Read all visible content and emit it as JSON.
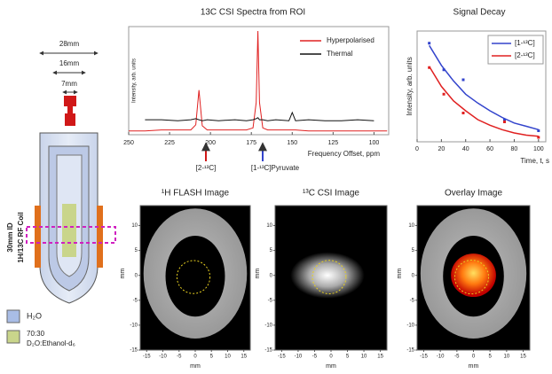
{
  "diagram": {
    "dims": [
      "28mm",
      "16mm",
      "7mm"
    ],
    "side_labels": [
      "30mm ID",
      "1H/13C RF Coil"
    ],
    "legend": [
      "H₂O",
      "70:30",
      "D₂O:Ethanol-d₆"
    ]
  },
  "annotations": [
    "[2-¹³C]",
    "[1-¹³C]Pyruvate"
  ],
  "chart_data": [
    {
      "type": "line",
      "title": "13C CSI Spectra from ROI",
      "xlabel": "Frequency Offset, ppm",
      "ylabel": "Intensity, arb. units",
      "x": [
        250,
        240,
        230,
        220,
        212,
        209,
        207,
        205,
        202,
        195,
        185,
        178,
        174,
        172,
        171,
        170,
        168,
        165,
        160,
        152,
        150,
        148,
        140,
        130,
        120,
        110,
        100,
        92
      ],
      "xlim": [
        250,
        91
      ],
      "xticks": [
        250,
        225,
        200,
        175,
        150,
        125,
        100
      ],
      "ylim": [
        0,
        1
      ],
      "series": [
        {
          "name": "Hyperpolarised",
          "color": "#e02020",
          "values": [
            0.02,
            0.02,
            0.03,
            0.03,
            0.03,
            0.08,
            0.42,
            0.07,
            0.03,
            0.03,
            0.03,
            0.03,
            0.05,
            0.3,
            1.0,
            0.3,
            0.05,
            0.03,
            0.03,
            0.03,
            0.03,
            0.03,
            0.02,
            0.02,
            0.02,
            0.02,
            0.02,
            0.02
          ]
        },
        {
          "name": "Thermal",
          "color": "#111111",
          "values": [
            null,
            0.13,
            0.13,
            0.12,
            0.13,
            0.14,
            0.13,
            0.12,
            0.13,
            0.12,
            0.13,
            0.12,
            0.13,
            0.14,
            0.15,
            0.13,
            0.13,
            0.12,
            0.13,
            0.12,
            0.2,
            0.12,
            0.13,
            0.12,
            0.12,
            0.13,
            0.12,
            null
          ]
        }
      ]
    },
    {
      "type": "scatter",
      "title": "Signal Decay",
      "xlabel": "Time, t, s",
      "ylabel": "Intensity, arb. units",
      "x": [
        10,
        22,
        38,
        72,
        100
      ],
      "fit_x": [
        10,
        20,
        30,
        40,
        50,
        60,
        70,
        80,
        90,
        100
      ],
      "xlim": [
        0,
        106
      ],
      "xticks": [
        0,
        20,
        40,
        60,
        80,
        100
      ],
      "ylim": [
        0,
        1
      ],
      "series": [
        {
          "name": "[1-¹³C]",
          "color": "#3344cc",
          "values": [
            0.89,
            0.65,
            0.56,
            0.2,
            0.1
          ],
          "fit": [
            0.87,
            0.69,
            0.55,
            0.43,
            0.35,
            0.28,
            0.22,
            0.17,
            0.14,
            0.11
          ]
        },
        {
          "name": "[2-¹³C]",
          "color": "#e02020",
          "values": [
            0.67,
            0.43,
            0.26,
            0.18,
            0.04
          ],
          "fit": [
            0.68,
            0.5,
            0.37,
            0.28,
            0.2,
            0.15,
            0.11,
            0.08,
            0.06,
            0.05
          ]
        }
      ]
    },
    {
      "type": "image",
      "title": "¹H FLASH Image",
      "xlabel": "mm",
      "ylabel": "mm",
      "xlim": [
        -17,
        17
      ],
      "ylim": [
        -15,
        14
      ],
      "xticks": [
        -15,
        -10,
        -5,
        0,
        5,
        10,
        15
      ],
      "yticks": [
        -15,
        -10,
        -5,
        0,
        5,
        10
      ]
    },
    {
      "type": "image",
      "title": "¹³C CSI Image",
      "xlabel": "mm",
      "ylabel": "mm",
      "xlim": [
        -17,
        17
      ],
      "ylim": [
        -15,
        14
      ],
      "xticks": [
        -15,
        -10,
        -5,
        0,
        5,
        10,
        15
      ],
      "yticks": [
        -15,
        -10,
        -5,
        0,
        5,
        10
      ]
    },
    {
      "type": "image",
      "title": "Overlay Image",
      "xlabel": "mm",
      "ylabel": "mm",
      "xlim": [
        -17,
        17
      ],
      "ylim": [
        -15,
        14
      ],
      "xticks": [
        -15,
        -10,
        -5,
        0,
        5,
        10,
        15
      ],
      "yticks": [
        -15,
        -10,
        -5,
        0,
        5,
        10
      ]
    }
  ]
}
